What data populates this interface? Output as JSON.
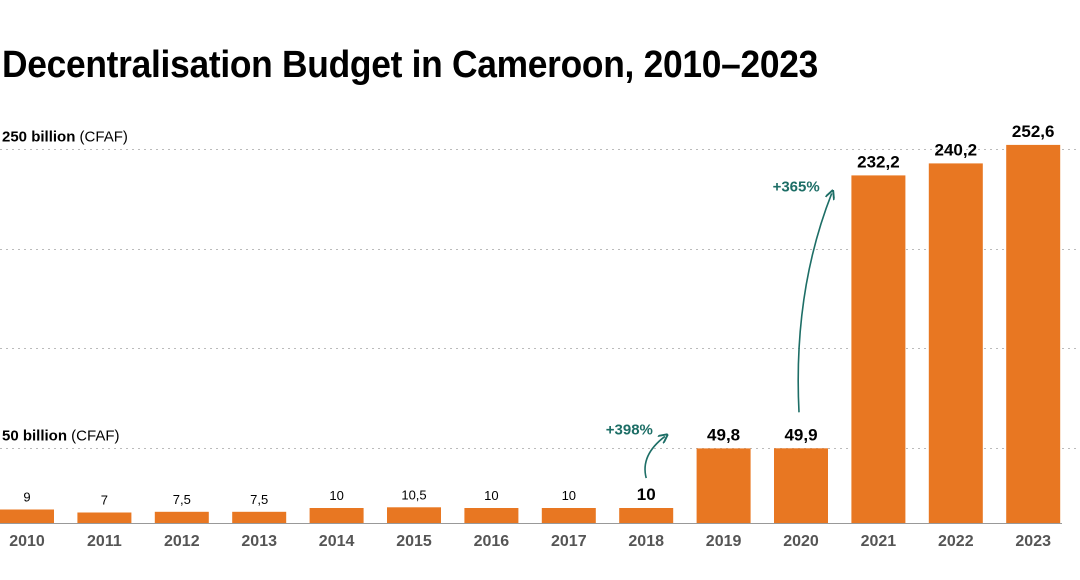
{
  "colors": {
    "bar": "#E87722",
    "annotation": "#1D6E66",
    "text": "#000000",
    "axis_text": "#555555",
    "grid": "#BBBBBB"
  },
  "chart_data": {
    "type": "bar",
    "title": "Decentralisation Budget in Cameroon, 2010–2023",
    "xlabel": "",
    "ylabel": "",
    "unit": "billion CFAF",
    "ylim": [
      0,
      252.6
    ],
    "grid": true,
    "gridlines": [
      {
        "value": 250,
        "label_bold": "250 billion",
        "label_rest": " (CFAF)"
      },
      {
        "value": 183.33,
        "label_bold": "",
        "label_rest": ""
      },
      {
        "value": 116.67,
        "label_bold": "",
        "label_rest": ""
      },
      {
        "value": 50,
        "label_bold": "50 billion",
        "label_rest": " (CFAF)"
      }
    ],
    "categories": [
      "2010",
      "2011",
      "2012",
      "2013",
      "2014",
      "2015",
      "2016",
      "2017",
      "2018",
      "2019",
      "2020",
      "2021",
      "2022",
      "2023"
    ],
    "values": [
      9,
      7,
      7.5,
      7.5,
      10,
      10.5,
      10,
      10,
      10,
      49.8,
      49.9,
      232.2,
      240.2,
      252.6
    ],
    "value_labels": [
      "9",
      "7",
      "7,5",
      "7,5",
      "10",
      "10,5",
      "10",
      "10",
      "10",
      "49,8",
      "49,9",
      "232,2",
      "240,2",
      "252,6"
    ],
    "bold_labels": [
      false,
      false,
      false,
      false,
      false,
      false,
      false,
      false,
      true,
      true,
      true,
      true,
      true,
      true
    ],
    "annotations": [
      {
        "text": "+398%",
        "from_category": "2018",
        "to_category": "2019"
      },
      {
        "text": "+365%",
        "from_category": "2020",
        "to_category": "2021"
      }
    ]
  }
}
